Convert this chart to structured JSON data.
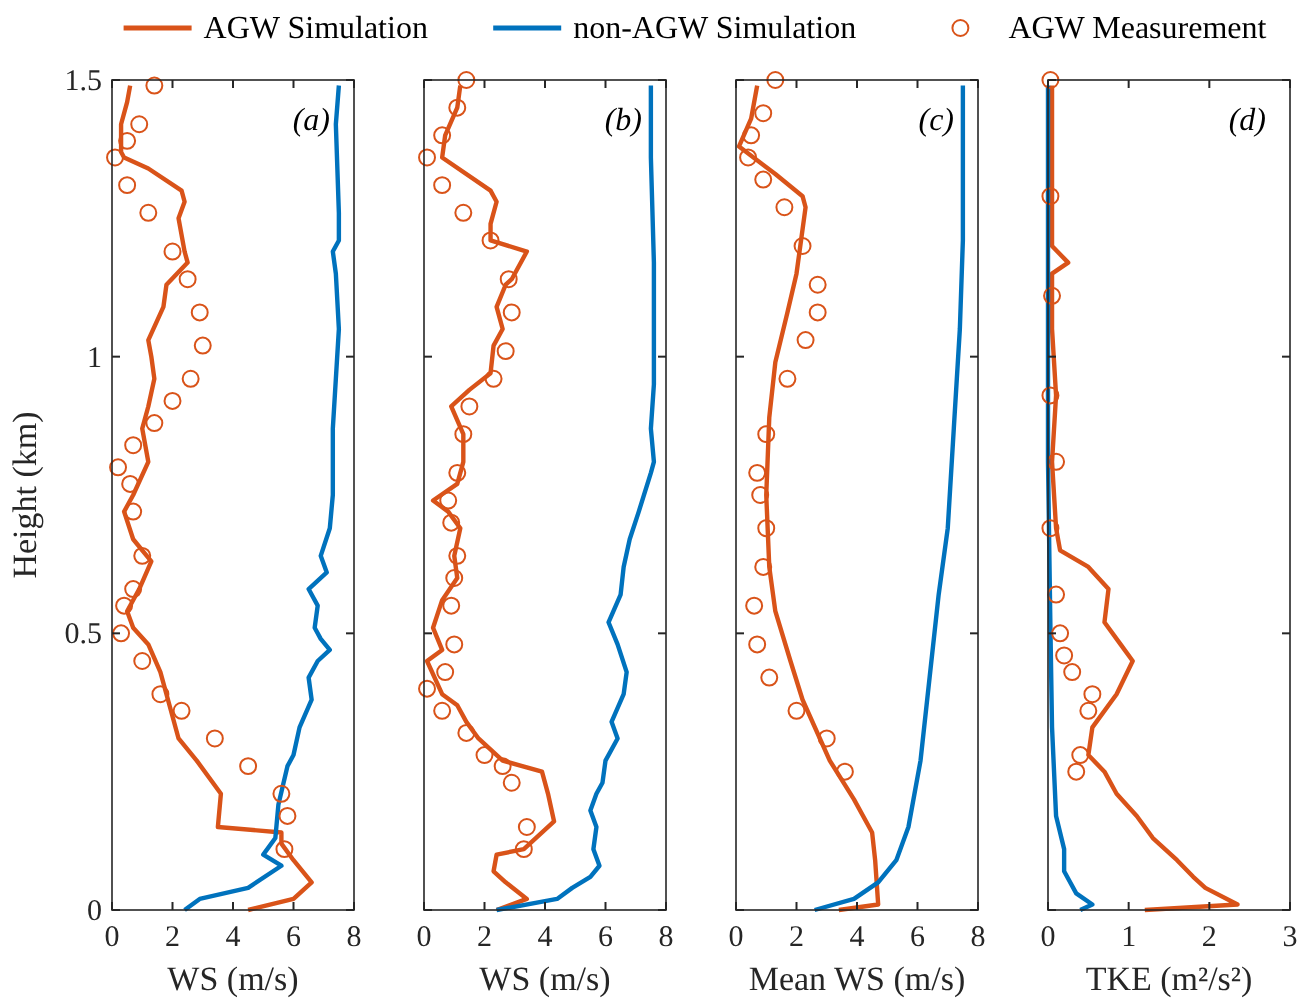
{
  "chart_data": [
    {
      "type": "line",
      "xlabel": "WS (m/s)",
      "ylabel": "Height (km)",
      "xlim": [
        0,
        8
      ],
      "xticks": [
        0,
        2,
        4,
        6,
        8
      ],
      "ylim": [
        0,
        1.5
      ],
      "yticks": [
        0,
        0.5,
        1,
        1.5
      ],
      "legend": "top",
      "annotations": [
        "(a)"
      ],
      "series": [
        {
          "name": "AGW Simulation",
          "type": "line",
          "color": "#d95319",
          "x": [
            4.5,
            6.0,
            6.6,
            6.0,
            5.6,
            5.6,
            3.5,
            3.6,
            2.8,
            2.2,
            1.9,
            1.6,
            1.2,
            0.7,
            0.5,
            0.9,
            1.3,
            0.7,
            0.4,
            0.7,
            1.2,
            1.0,
            1.2,
            1.4,
            1.3,
            1.2,
            1.7,
            1.8,
            2.5,
            2.4,
            2.2,
            2.4,
            2.3,
            1.2,
            0.4,
            0.3,
            0.3,
            0.5,
            0.6
          ],
          "values": [
            0,
            0.02,
            0.05,
            0.09,
            0.12,
            0.14,
            0.15,
            0.21,
            0.27,
            0.31,
            0.37,
            0.43,
            0.48,
            0.51,
            0.54,
            0.58,
            0.63,
            0.67,
            0.72,
            0.75,
            0.81,
            0.87,
            0.91,
            0.96,
            1.0,
            1.03,
            1.09,
            1.13,
            1.17,
            1.19,
            1.25,
            1.28,
            1.3,
            1.34,
            1.36,
            1.37,
            1.42,
            1.46,
            1.49
          ]
        },
        {
          "name": "non-AGW Simulation",
          "type": "line",
          "color": "#0072bd",
          "x": [
            2.4,
            2.9,
            4.5,
            5.6,
            5.0,
            5.4,
            5.5,
            5.8,
            6.0,
            6.2,
            6.6,
            6.5,
            6.8,
            7.2,
            6.9,
            6.7,
            6.8,
            6.5,
            7.1,
            6.9,
            7.2,
            7.3,
            7.3,
            7.4,
            7.5,
            7.4,
            7.3,
            7.5,
            7.5,
            7.4,
            7.5
          ],
          "values": [
            0,
            0.02,
            0.04,
            0.08,
            0.1,
            0.13,
            0.19,
            0.26,
            0.28,
            0.33,
            0.38,
            0.42,
            0.45,
            0.47,
            0.49,
            0.51,
            0.55,
            0.58,
            0.61,
            0.64,
            0.69,
            0.75,
            0.87,
            0.96,
            1.05,
            1.15,
            1.19,
            1.21,
            1.26,
            1.42,
            1.49
          ]
        },
        {
          "name": "AGW Measurement",
          "type": "scatter",
          "marker": "circle",
          "color": "#d95319",
          "x": [
            5.7,
            5.8,
            5.6,
            4.5,
            3.4,
            2.3,
            1.6,
            1.0,
            0.3,
            0.4,
            0.7,
            1.0,
            0.7,
            0.6,
            0.2,
            0.7,
            1.4,
            2.0,
            2.6,
            3.0,
            2.9,
            2.5,
            2.0,
            1.2,
            0.5,
            0.1,
            0.5,
            0.9,
            1.4
          ],
          "values": [
            0.11,
            0.17,
            0.21,
            0.26,
            0.31,
            0.36,
            0.39,
            0.45,
            0.5,
            0.55,
            0.58,
            0.64,
            0.72,
            0.77,
            0.8,
            0.84,
            0.88,
            0.92,
            0.96,
            1.02,
            1.08,
            1.14,
            1.19,
            1.26,
            1.31,
            1.36,
            1.39,
            1.42,
            1.49
          ]
        }
      ]
    },
    {
      "type": "line",
      "xlabel": "WS (m/s)",
      "xlim": [
        0,
        8
      ],
      "xticks": [
        0,
        2,
        4,
        6,
        8
      ],
      "ylim": [
        0,
        1.5
      ],
      "yticks": [
        0,
        0.5,
        1,
        1.5
      ],
      "tick_labels": "x",
      "annotations": [
        "(b)"
      ],
      "series": [
        {
          "type": "line",
          "color": "#d95319",
          "x": [
            2.4,
            3.4,
            2.7,
            2.3,
            2.4,
            3.3,
            4.3,
            4.1,
            3.9,
            2.6,
            1.8,
            1.4,
            1.1,
            0.6,
            0.1,
            0.6,
            0.3,
            0.6,
            1.1,
            1.0,
            1.2,
            0.8,
            0.3,
            1.1,
            1.3,
            1.3,
            0.9,
            1.5,
            2.2,
            2.3,
            2.6,
            2.4,
            2.7,
            2.9,
            3.4,
            2.2,
            2.2,
            2.4,
            2.2,
            0.6,
            0.7,
            1.1,
            1.2
          ],
          "values": [
            0,
            0.02,
            0.05,
            0.07,
            0.1,
            0.11,
            0.16,
            0.21,
            0.25,
            0.27,
            0.31,
            0.34,
            0.37,
            0.39,
            0.45,
            0.47,
            0.51,
            0.56,
            0.6,
            0.64,
            0.69,
            0.72,
            0.74,
            0.77,
            0.81,
            0.86,
            0.91,
            0.94,
            0.97,
            1.02,
            1.05,
            1.09,
            1.13,
            1.14,
            1.19,
            1.21,
            1.24,
            1.28,
            1.3,
            1.36,
            1.4,
            1.45,
            1.49
          ]
        },
        {
          "type": "line",
          "color": "#0072bd",
          "x": [
            2.4,
            4.4,
            4.9,
            5.5,
            5.8,
            5.6,
            5.7,
            5.5,
            5.7,
            5.9,
            6.0,
            6.4,
            6.2,
            6.6,
            6.7,
            6.4,
            6.1,
            6.5,
            6.6,
            6.8,
            7.1,
            7.5,
            7.6,
            7.5,
            7.6,
            7.6,
            7.6,
            7.5,
            7.5
          ],
          "values": [
            0,
            0.02,
            0.04,
            0.06,
            0.08,
            0.11,
            0.15,
            0.18,
            0.21,
            0.23,
            0.27,
            0.31,
            0.34,
            0.39,
            0.43,
            0.48,
            0.52,
            0.57,
            0.62,
            0.67,
            0.72,
            0.79,
            0.81,
            0.87,
            0.95,
            1.01,
            1.17,
            1.36,
            1.49
          ]
        },
        {
          "type": "scatter",
          "marker": "circle",
          "color": "#d95319",
          "x": [
            3.3,
            3.4,
            2.9,
            2.6,
            2.0,
            1.4,
            0.6,
            0.1,
            0.7,
            1.0,
            0.9,
            1.0,
            1.1,
            0.9,
            0.8,
            1.1,
            1.3,
            1.5,
            2.3,
            2.7,
            2.9,
            2.8,
            2.2,
            1.3,
            0.6,
            0.1,
            0.6,
            1.1,
            1.4
          ],
          "values": [
            0.11,
            0.15,
            0.23,
            0.26,
            0.28,
            0.32,
            0.36,
            0.4,
            0.43,
            0.48,
            0.55,
            0.6,
            0.64,
            0.7,
            0.74,
            0.79,
            0.86,
            0.91,
            0.96,
            1.01,
            1.08,
            1.14,
            1.21,
            1.26,
            1.31,
            1.36,
            1.4,
            1.45,
            1.5
          ]
        }
      ]
    },
    {
      "type": "line",
      "xlabel": "Mean WS (m/s)",
      "xlim": [
        0,
        8
      ],
      "xticks": [
        0,
        2,
        4,
        6,
        8
      ],
      "ylim": [
        0,
        1.5
      ],
      "yticks": [
        0,
        0.5,
        1,
        1.5
      ],
      "tick_labels": "x",
      "annotations": [
        "(c)"
      ],
      "series": [
        {
          "type": "line",
          "color": "#d95319",
          "x": [
            3.4,
            4.7,
            4.6,
            4.5,
            3.9,
            3.1,
            2.2,
            1.8,
            1.3,
            1.1,
            1.0,
            1.1,
            1.3,
            1.7,
            2.0,
            2.3,
            2.2,
            1.3,
            0.1,
            0.5,
            0.7
          ],
          "values": [
            0,
            0.01,
            0.09,
            0.14,
            0.2,
            0.27,
            0.38,
            0.45,
            0.54,
            0.62,
            0.75,
            0.89,
            0.99,
            1.08,
            1.15,
            1.27,
            1.29,
            1.33,
            1.38,
            1.43,
            1.49
          ]
        },
        {
          "type": "line",
          "color": "#0072bd",
          "x": [
            2.6,
            3.9,
            4.7,
            5.3,
            5.7,
            6.1,
            6.4,
            6.7,
            7.0,
            7.2,
            7.4,
            7.5,
            7.5
          ],
          "values": [
            0,
            0.02,
            0.05,
            0.09,
            0.15,
            0.27,
            0.42,
            0.57,
            0.69,
            0.87,
            1.05,
            1.21,
            1.49
          ]
        },
        {
          "type": "scatter",
          "marker": "circle",
          "color": "#d95319",
          "x": [
            3.6,
            3.0,
            2.0,
            1.1,
            0.7,
            0.6,
            0.9,
            1.0,
            0.8,
            0.7,
            1.0,
            1.7,
            2.3,
            2.7,
            2.7,
            2.2,
            1.6,
            0.9,
            0.4,
            0.5,
            0.9,
            1.3
          ],
          "values": [
            0.25,
            0.31,
            0.36,
            0.42,
            0.48,
            0.55,
            0.62,
            0.69,
            0.75,
            0.79,
            0.86,
            0.96,
            1.03,
            1.08,
            1.13,
            1.2,
            1.27,
            1.32,
            1.36,
            1.4,
            1.44,
            1.5
          ]
        }
      ]
    },
    {
      "type": "line",
      "xlabel": "TKE (m²/s²)",
      "xlim": [
        0,
        3
      ],
      "xticks": [
        0,
        1,
        2,
        3
      ],
      "ylim": [
        0,
        1.5
      ],
      "yticks": [
        0,
        0.5,
        1,
        1.5
      ],
      "tick_labels": "x",
      "annotations": [
        "(d)"
      ],
      "series": [
        {
          "type": "line",
          "color": "#d95319",
          "x": [
            1.2,
            2.35,
            1.95,
            1.8,
            1.6,
            1.3,
            1.1,
            0.85,
            0.7,
            0.5,
            0.55,
            0.85,
            1.05,
            0.9,
            0.7,
            0.75,
            0.5,
            0.15,
            0.1,
            0.05,
            0.1,
            0.05,
            0.05,
            0.25,
            0.05,
            0.05,
            0.05
          ],
          "values": [
            0,
            0.01,
            0.04,
            0.06,
            0.09,
            0.13,
            0.17,
            0.21,
            0.25,
            0.28,
            0.33,
            0.39,
            0.45,
            0.48,
            0.52,
            0.58,
            0.62,
            0.65,
            0.69,
            0.81,
            0.93,
            1.05,
            1.15,
            1.17,
            1.2,
            1.36,
            1.49
          ]
        },
        {
          "type": "line",
          "color": "#0072bd",
          "x": [
            0.4,
            0.55,
            0.35,
            0.2,
            0.2,
            0.1,
            0.05,
            0.03,
            0.0,
            0.0
          ],
          "values": [
            0,
            0.01,
            0.03,
            0.07,
            0.11,
            0.17,
            0.33,
            0.51,
            0.81,
            1.49
          ]
        },
        {
          "type": "scatter",
          "marker": "circle",
          "color": "#d95319",
          "x": [
            0.35,
            0.4,
            0.5,
            0.55,
            0.3,
            0.2,
            0.15,
            0.1,
            0.03,
            0.1,
            0.03,
            0.05,
            0.03,
            0.03
          ],
          "values": [
            0.25,
            0.28,
            0.36,
            0.39,
            0.43,
            0.46,
            0.5,
            0.57,
            0.69,
            0.81,
            0.93,
            1.11,
            1.29,
            1.5
          ]
        }
      ]
    }
  ]
}
